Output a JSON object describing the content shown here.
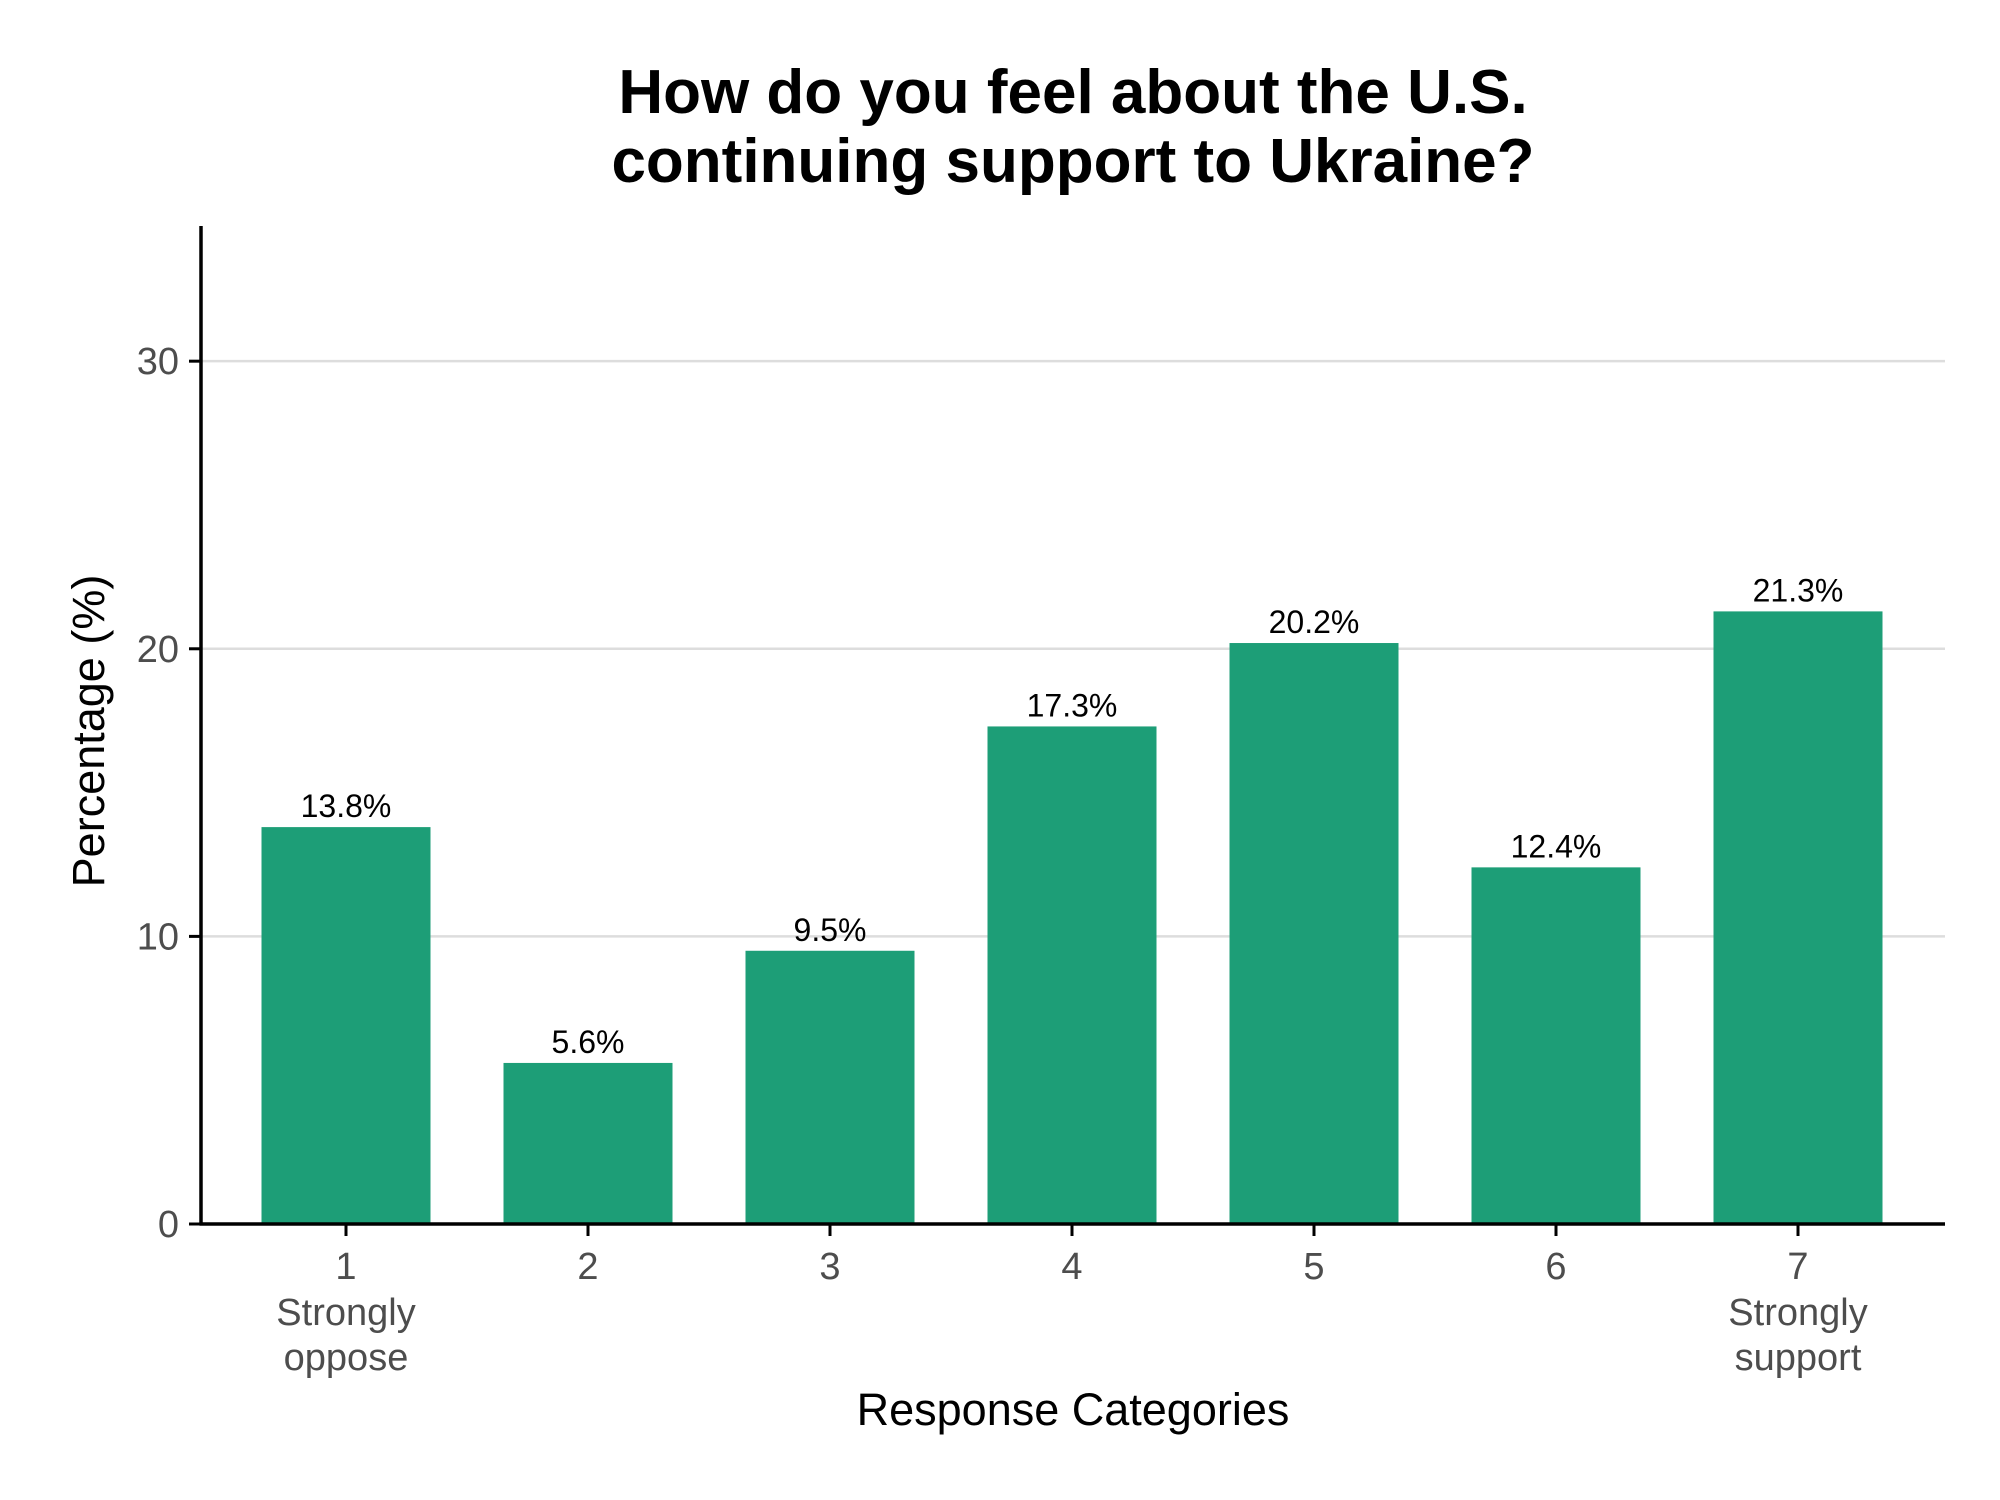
{
  "chart_data": {
    "type": "bar",
    "title_lines": [
      "How do you feel about the U.S.",
      "continuing support to Ukraine?"
    ],
    "xlabel": "Response Categories",
    "ylabel": "Percentage (%)",
    "categories": [
      "1",
      "2",
      "3",
      "4",
      "5",
      "6",
      "7"
    ],
    "category_sublabels": [
      [
        "Strongly",
        "oppose"
      ],
      [],
      [],
      [],
      [],
      [],
      [
        "Strongly",
        "support"
      ]
    ],
    "values": [
      13.8,
      5.6,
      9.5,
      17.3,
      20.2,
      12.4,
      21.3
    ],
    "value_labels": [
      "13.8%",
      "5.6%",
      "9.5%",
      "17.3%",
      "20.2%",
      "12.4%",
      "21.3%"
    ],
    "yticks": [
      0,
      10,
      20,
      30
    ],
    "ylim": [
      0,
      34.7
    ],
    "grid": "horizontal major",
    "legend": "none",
    "colors": {
      "bar": "#1d9e77",
      "grid": "#dddddd",
      "axis": "#000000",
      "tick_text": "#4d4d4d",
      "text": "#000000"
    }
  }
}
